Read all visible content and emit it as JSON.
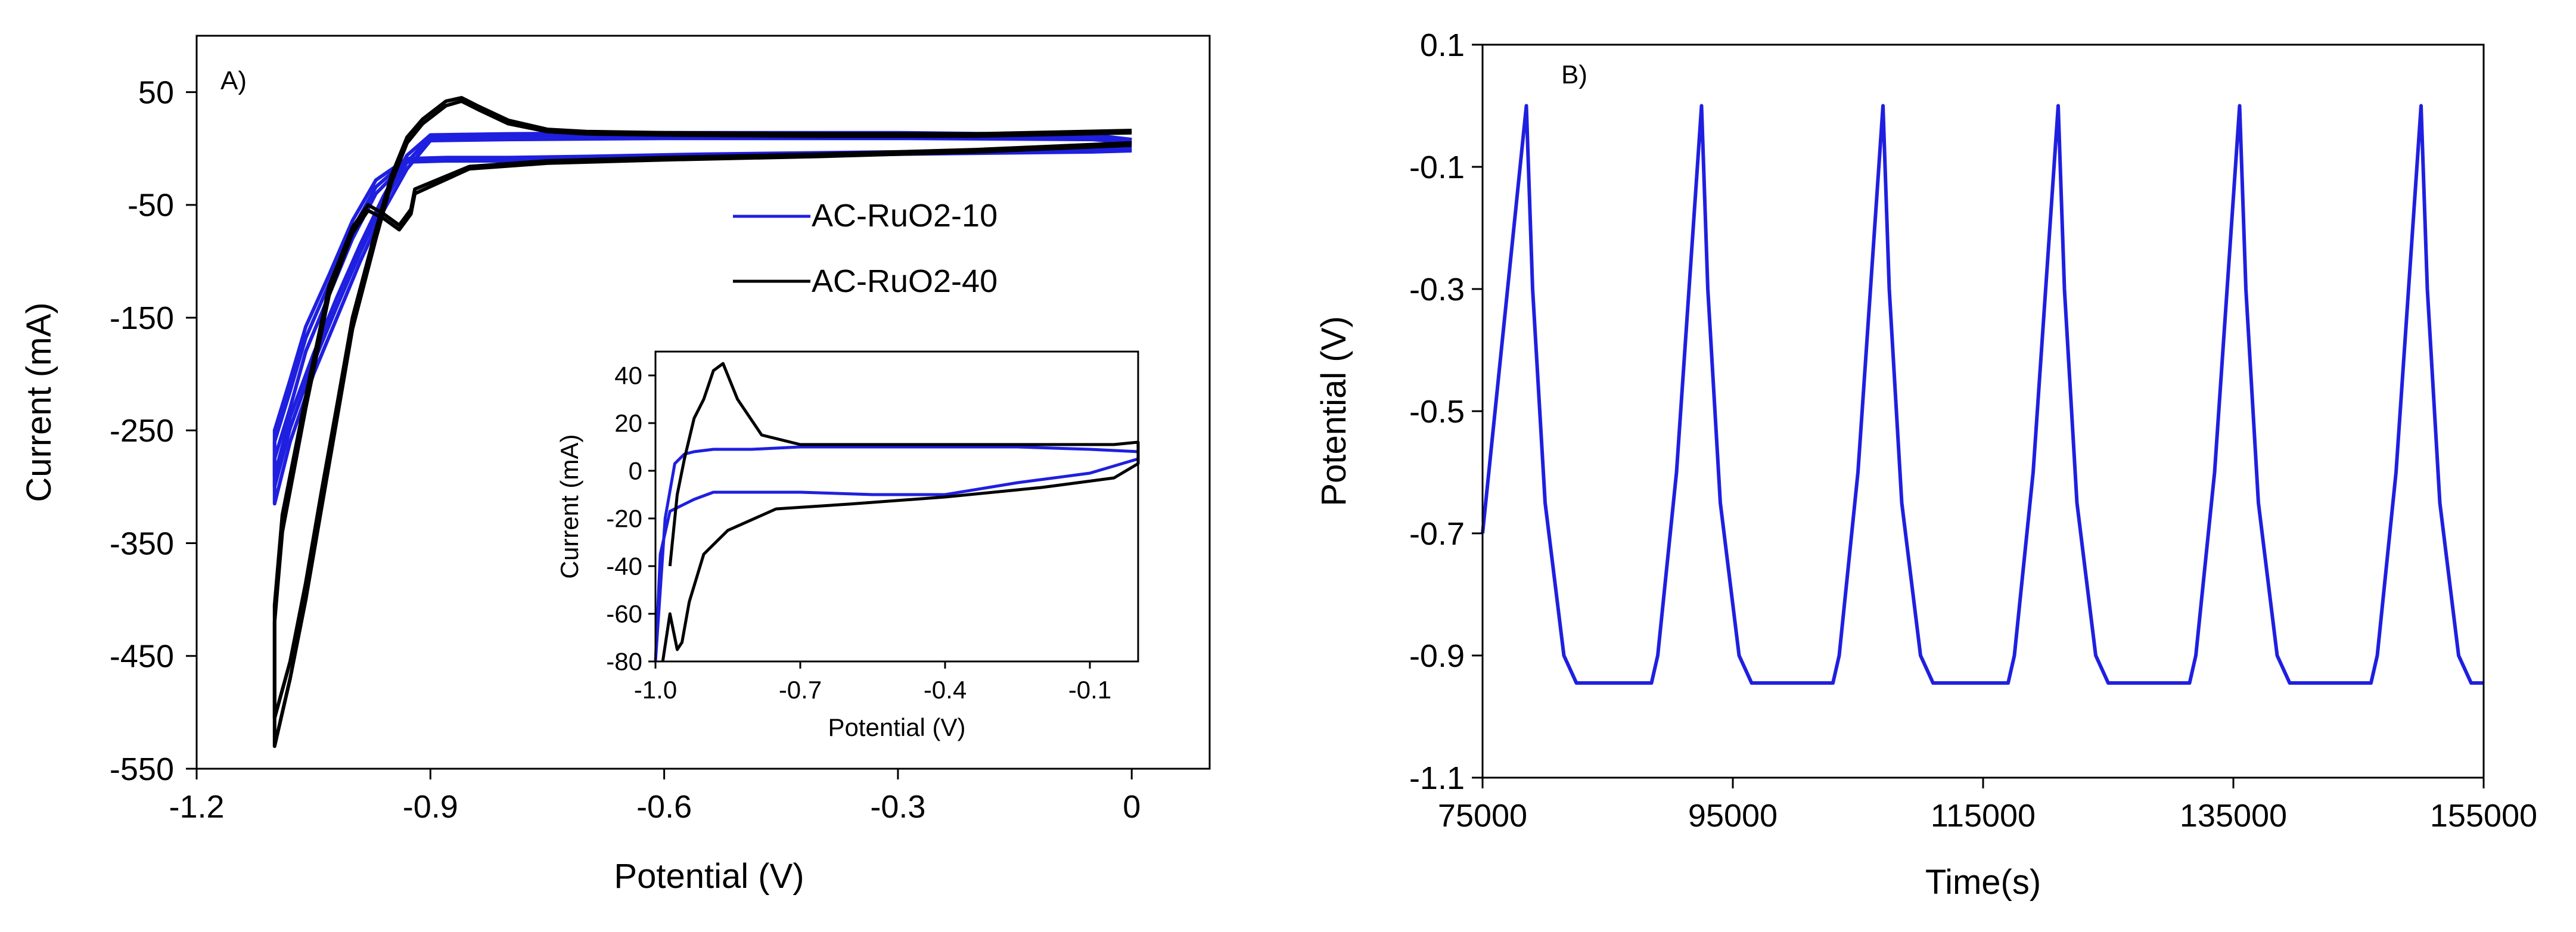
{
  "chart_data": [
    {
      "type": "line",
      "panel_label": "A)",
      "xlabel": "Potential (V)",
      "ylabel": "Current (mA)",
      "xlim": [
        -1.2,
        0.1
      ],
      "ylim": [
        -550,
        100
      ],
      "x_ticks": [
        -1.2,
        -0.9,
        -0.6,
        -0.3,
        0
      ],
      "x_tick_labels": [
        "-1.2",
        "-0.9",
        "-0.6",
        "-0.3",
        "0"
      ],
      "y_ticks": [
        50,
        -50,
        -150,
        -250,
        -350,
        -450,
        -550
      ],
      "y_tick_labels": [
        "50",
        "-50",
        "-150",
        "-250",
        "-350",
        "-450",
        "-550"
      ],
      "legend_position": "center-right",
      "series": [
        {
          "name": "AC-RuO2-10",
          "color": "#1f1fe0",
          "loops": [
            {
              "x": [
                0.0,
                -0.05,
                -0.3,
                -0.55,
                -0.7,
                -0.8,
                -0.88,
                -0.93,
                -0.97,
                -1.0,
                -1.03,
                -1.06,
                -1.08,
                -1.1,
                -1.1,
                -1.08,
                -1.05,
                -1.02,
                -0.99,
                -0.96,
                -0.93,
                -0.9,
                -0.8,
                -0.6,
                -0.3,
                -0.05,
                0.0
              ],
              "y": [
                -2,
                -3,
                -5,
                -8,
                -10,
                -11,
                -11,
                -12,
                -40,
                -80,
                -130,
                -180,
                -230,
                -275,
                -315,
                -260,
                -200,
                -150,
                -100,
                -55,
                -18,
                7,
                8,
                9,
                9,
                8,
                5
              ]
            },
            {
              "x": [
                0.0,
                -0.05,
                -0.3,
                -0.55,
                -0.7,
                -0.8,
                -0.88,
                -0.93,
                -0.97,
                -1.0,
                -1.03,
                -1.06,
                -1.08,
                -1.1,
                -1.1,
                -1.08,
                -1.05,
                -1.02,
                -0.99,
                -0.96,
                -0.93,
                -0.9,
                -0.8,
                -0.6,
                -0.3,
                -0.05,
                0.0
              ],
              "y": [
                -1,
                -2,
                -4,
                -6,
                -8,
                -9,
                -9,
                -10,
                -34,
                -72,
                -120,
                -168,
                -215,
                -260,
                -300,
                -248,
                -190,
                -140,
                -92,
                -48,
                -12,
                10,
                11,
                12,
                12,
                11,
                7
              ]
            },
            {
              "x": [
                0.0,
                -0.05,
                -0.3,
                -0.55,
                -0.7,
                -0.8,
                -0.88,
                -0.93,
                -0.97,
                -1.0,
                -1.03,
                -1.06,
                -1.08,
                -1.1,
                -1.1,
                -1.08,
                -1.05,
                -1.02,
                -0.99,
                -0.96,
                -0.93,
                -0.9,
                -0.8,
                -0.6,
                -0.3,
                -0.05,
                0.0
              ],
              "y": [
                0,
                -1,
                -3,
                -5,
                -7,
                -8,
                -8,
                -9,
                -28,
                -64,
                -112,
                -158,
                -205,
                -250,
                -290,
                -238,
                -182,
                -132,
                -85,
                -42,
                -6,
                12,
                13,
                14,
                14,
                12,
                8
              ]
            }
          ]
        },
        {
          "name": "AC-RuO2-40",
          "color": "#000000",
          "loops": [
            {
              "x": [
                0.0,
                -0.2,
                -0.4,
                -0.6,
                -0.75,
                -0.85,
                -0.92,
                -0.925,
                -0.94,
                -0.96,
                -0.98,
                -1.0,
                -1.03,
                -1.06,
                -1.09,
                -1.1,
                -1.1,
                -1.08,
                -1.06,
                -1.04,
                -1.02,
                -1.0,
                -0.97,
                -0.95,
                -0.93,
                -0.91,
                -0.88,
                -0.86,
                -0.84,
                -0.8,
                -0.75,
                -0.7,
                -0.6,
                -0.4,
                -0.2,
                0.0
              ],
              "y": [
                3,
                -3,
                -7,
                -10,
                -13,
                -18,
                -40,
                -58,
                -72,
                -62,
                -55,
                -75,
                -130,
                -230,
                -340,
                -420,
                -530,
                -470,
                -400,
                -320,
                -240,
                -160,
                -80,
                -30,
                5,
                22,
                38,
                42,
                35,
                22,
                15,
                13,
                12,
                11,
                11,
                14
              ]
            },
            {
              "x": [
                0.0,
                -0.2,
                -0.4,
                -0.6,
                -0.75,
                -0.85,
                -0.92,
                -0.925,
                -0.94,
                -0.96,
                -0.98,
                -1.0,
                -1.03,
                -1.06,
                -1.09,
                -1.1,
                -1.1,
                -1.08,
                -1.06,
                -1.04,
                -1.02,
                -1.0,
                -0.97,
                -0.95,
                -0.93,
                -0.91,
                -0.88,
                -0.86,
                -0.84,
                -0.8,
                -0.75,
                -0.7,
                -0.6,
                -0.4,
                -0.2,
                0.0
              ],
              "y": [
                5,
                -1,
                -5,
                -8,
                -11,
                -16,
                -36,
                -54,
                -68,
                -58,
                -50,
                -70,
                -122,
                -220,
                -325,
                -405,
                -505,
                -455,
                -385,
                -305,
                -228,
                -150,
                -72,
                -24,
                10,
                26,
                42,
                45,
                38,
                25,
                17,
                15,
                14,
                13,
                13,
                16
              ]
            }
          ]
        }
      ],
      "inset": {
        "type": "line",
        "xlabel": "Potential (V)",
        "ylabel": "Current (mA)",
        "xlim": [
          -1.0,
          0.0
        ],
        "ylim": [
          -80,
          50
        ],
        "x_ticks": [
          -1.0,
          -0.7,
          -0.4,
          -0.1
        ],
        "x_tick_labels": [
          "-1.0",
          "-0.7",
          "-0.4",
          "-0.1"
        ],
        "y_ticks": [
          40,
          20,
          0,
          -20,
          -40,
          -60,
          -80
        ],
        "y_tick_labels": [
          "40",
          "20",
          "0",
          "-20",
          "-40",
          "-60",
          "-80"
        ],
        "series": [
          {
            "name": "AC-RuO2-10",
            "color": "#1f1fe0",
            "x": [
              -1.0,
              -0.99,
              -0.97,
              -0.95,
              -0.92,
              -0.88,
              -0.8,
              -0.7,
              -0.55,
              -0.4,
              -0.25,
              -0.1,
              0.0,
              0.0,
              -0.1,
              -0.25,
              -0.4,
              -0.55,
              -0.7,
              -0.8,
              -0.88,
              -0.92,
              -0.94,
              -0.96,
              -0.98,
              -1.0
            ],
            "y": [
              -80,
              -35,
              -17,
              -15,
              -12,
              -9,
              -9,
              -9,
              -10,
              -10,
              -5,
              -1,
              5,
              8,
              9,
              10,
              10,
              10,
              10,
              9,
              9,
              8,
              7,
              3,
              -20,
              -80
            ]
          },
          {
            "name": "AC-RuO2-40",
            "color": "#000000",
            "x": [
              -0.985,
              -0.97,
              -0.955,
              -0.945,
              -0.93,
              -0.9,
              -0.85,
              -0.75,
              -0.6,
              -0.4,
              -0.2,
              -0.05,
              0.0,
              0.0,
              -0.05,
              -0.2,
              -0.4,
              -0.6,
              -0.7,
              -0.78,
              -0.83,
              -0.86,
              -0.88,
              -0.9,
              -0.92,
              -0.94,
              -0.955,
              -0.97
            ],
            "y": [
              -80,
              -60,
              -75,
              -72,
              -55,
              -35,
              -25,
              -16,
              -14,
              -11,
              -7,
              -3,
              3,
              12,
              11,
              11,
              11,
              11,
              11,
              15,
              30,
              45,
              42,
              30,
              22,
              5,
              -10,
              -40
            ]
          }
        ]
      }
    },
    {
      "type": "line",
      "panel_label": "B)",
      "xlabel": "Time(s)",
      "ylabel": "Potential (V)",
      "xlim": [
        75000,
        155000
      ],
      "ylim": [
        -1.1,
        0.1
      ],
      "x_ticks": [
        75000,
        95000,
        115000,
        135000,
        155000
      ],
      "x_tick_labels": [
        "75000",
        "95000",
        "115000",
        "135000",
        "155000"
      ],
      "y_ticks": [
        0.1,
        -0.1,
        -0.3,
        -0.5,
        -0.7,
        -0.9,
        -1.1
      ],
      "y_tick_labels": [
        "0.1",
        "-0.1",
        "-0.3",
        "-0.5",
        "-0.7",
        "-0.9",
        "-1.1"
      ],
      "series": [
        {
          "name": "Potential",
          "color": "#1f1fe0",
          "x": [
            75000,
            78500,
            79000,
            80000,
            81500,
            82500,
            88500,
            89000,
            90500,
            92500,
            93000,
            94000,
            95500,
            96500,
            103000,
            103500,
            105000,
            107000,
            107500,
            108500,
            110000,
            111000,
            117000,
            117500,
            119000,
            121000,
            121500,
            122500,
            124000,
            125000,
            131500,
            132000,
            133500,
            135500,
            136000,
            137000,
            138500,
            139500,
            146000,
            146500,
            148000,
            150000,
            150500,
            151500,
            153000,
            154000,
            155000
          ],
          "y": [
            -0.7,
            0.0,
            -0.3,
            -0.65,
            -0.9,
            -0.945,
            -0.945,
            -0.9,
            -0.6,
            0.0,
            -0.3,
            -0.65,
            -0.9,
            -0.945,
            -0.945,
            -0.9,
            -0.6,
            0.0,
            -0.3,
            -0.65,
            -0.9,
            -0.945,
            -0.945,
            -0.9,
            -0.6,
            0.0,
            -0.3,
            -0.65,
            -0.9,
            -0.945,
            -0.945,
            -0.9,
            -0.6,
            0.0,
            -0.3,
            -0.65,
            -0.9,
            -0.945,
            -0.945,
            -0.9,
            -0.6,
            0.0,
            -0.3,
            -0.65,
            -0.9,
            -0.945,
            -0.945
          ]
        }
      ]
    }
  ]
}
